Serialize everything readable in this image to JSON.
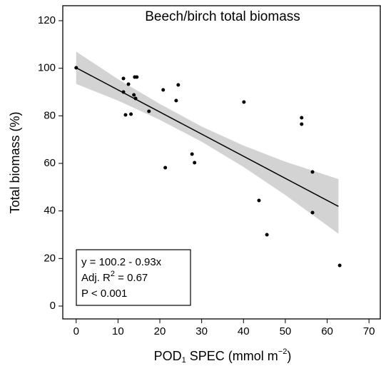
{
  "chart_data": {
    "type": "scatter",
    "title": "Beech/birch total biomass",
    "x_label": [
      "POD",
      "1",
      " SPEC (mmol m",
      "−2",
      ")"
    ],
    "y_label": "Total biomass (%)",
    "xlim": [
      -3.2,
      72.7
    ],
    "ylim": [
      -5.4,
      126.3
    ],
    "xticks": [
      0,
      10,
      20,
      30,
      40,
      50,
      60,
      70
    ],
    "yticks": [
      0,
      20,
      40,
      60,
      80,
      100,
      120
    ],
    "x": [
      0,
      11.3,
      11.3,
      12.5,
      11.8,
      13.8,
      14,
      14.5,
      14.2,
      13.1,
      17.4,
      20.8,
      24.4,
      23.9,
      21.3,
      27.7,
      28.3,
      40.1,
      53.9,
      53.9,
      43.7,
      45.6,
      56.5,
      56.5,
      63
    ],
    "series": [
      {
        "color": "#000000",
        "values": [
          100.2,
          95.7,
          90,
          93.3,
          80.4,
          88.8,
          96.3,
          96.3,
          87.3,
          80.7,
          81.9,
          90.9,
          93,
          86.4,
          58.2,
          63.9,
          60.3,
          85.8,
          79.2,
          76.5,
          44.4,
          30,
          56.4,
          39.3,
          17.1
        ]
      }
    ],
    "fit": {
      "color": "#000000",
      "x": [
        0,
        62.7
      ],
      "values": [
        100.2,
        41.9
      ]
    },
    "band": {
      "color": "#d3d3d3",
      "x": [
        0,
        10,
        20,
        30,
        40,
        50,
        62.7
      ],
      "upper": [
        107,
        95.4,
        85,
        75.5,
        67.5,
        60.7,
        53.4
      ],
      "lower": [
        93.4,
        86.4,
        78.3,
        69.1,
        58.5,
        46.7,
        30.4
      ]
    },
    "annotation": [
      [
        "y = 100.2 - 0.93x"
      ],
      [
        "Adj. R",
        "2",
        "  = 0.67"
      ],
      [
        "P < 0.001"
      ]
    ]
  }
}
